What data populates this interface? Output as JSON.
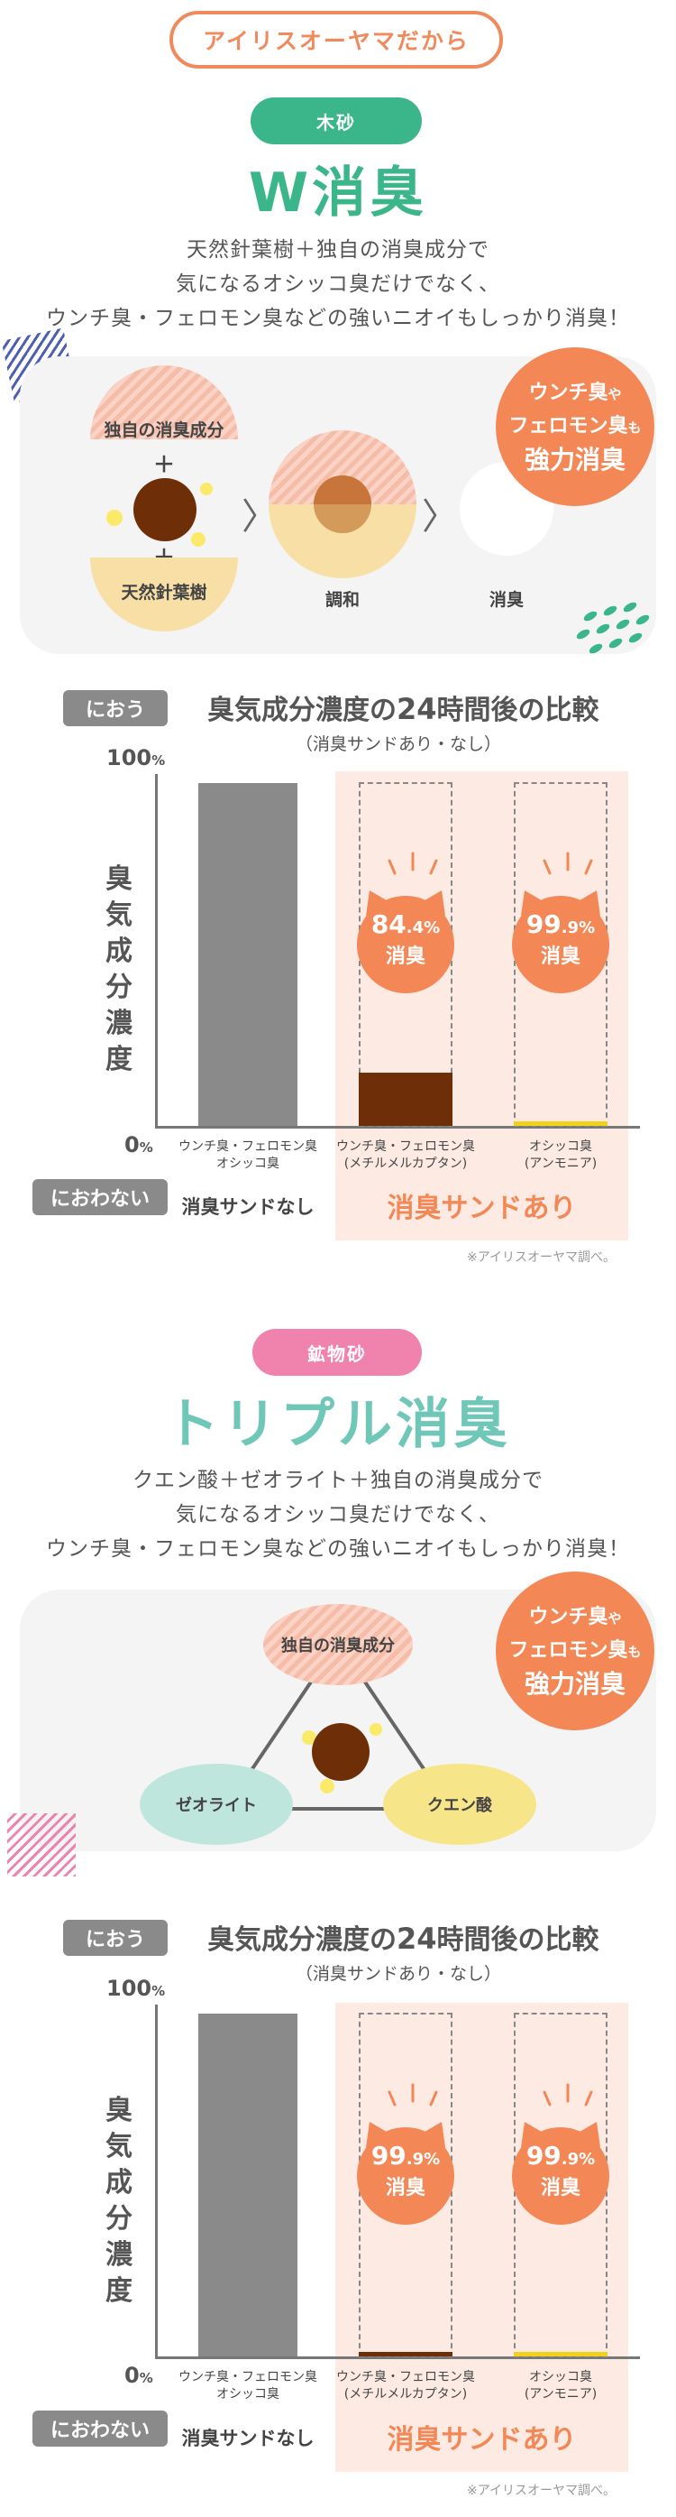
{
  "header_pill": "アイリスオーヤマだから",
  "section1": {
    "tag": "木砂",
    "title": "W消臭",
    "desc": [
      "天然針葉樹＋独自の消臭成分で",
      "気になるオシッコ臭だけでなく、",
      "ウンチ臭・フェロモン臭などの強いニオイもしっかり消臭！"
    ],
    "badge": {
      "line1": "ウンチ臭",
      "line1_small": "や",
      "line2": "フェロモン臭",
      "line2_small": "も",
      "line3": "強力消臭"
    },
    "diagram": {
      "top_label": "独自の消臭成分",
      "plus": "＋",
      "bottom_label": "天然針葉樹",
      "mix_label": "調和",
      "result_label": "消臭",
      "chevron": "〉"
    },
    "chart": {
      "title_prefix": "臭気成分濃度の",
      "title_num": "24",
      "title_suffix": "時間後の比較",
      "subtitle": "（消臭サンドあり・なし）",
      "top_tag": "におう",
      "bottom_tag": "におわない",
      "top_pct": "100",
      "bottom_pct": "0",
      "pct_sign": "%",
      "ylabel": [
        "臭",
        "気",
        "成",
        "分",
        "濃",
        "度"
      ],
      "cats": [
        {
          "l1": "ウンチ臭・フェロモン臭",
          "l2": "オシッコ臭"
        },
        {
          "l1": "ウンチ臭・フェロモン臭",
          "l2": "(メチルメルカプタン)"
        },
        {
          "l1": "オシッコ臭",
          "l2": "(アンモニア)"
        }
      ],
      "group_none": "消臭サンドなし",
      "group_yes": "消臭サンドあり",
      "note": "※アイリスオーヤマ調べ。",
      "badges": [
        {
          "int": "84",
          "dec": ".4%",
          "label": "消臭"
        },
        {
          "int": "99",
          "dec": ".9%",
          "label": "消臭"
        }
      ]
    }
  },
  "section2": {
    "tag": "鉱物砂",
    "title": "トリプル消臭",
    "desc": [
      "クエン酸＋ゼオライト＋独自の消臭成分で",
      "気になるオシッコ臭だけでなく、",
      "ウンチ臭・フェロモン臭などの強いニオイもしっかり消臭！"
    ],
    "badge": {
      "line1": "ウンチ臭",
      "line1_small": "や",
      "line2": "フェロモン臭",
      "line2_small": "も",
      "line3": "強力消臭"
    },
    "diagram": {
      "top_label": "独自の消臭成分",
      "left_label": "ゼオライト",
      "right_label": "クエン酸"
    },
    "chart": {
      "title_prefix": "臭気成分濃度の",
      "title_num": "24",
      "title_suffix": "時間後の比較",
      "subtitle": "（消臭サンドあり・なし）",
      "top_tag": "におう",
      "bottom_tag": "におわない",
      "top_pct": "100",
      "bottom_pct": "0",
      "pct_sign": "%",
      "ylabel": [
        "臭",
        "気",
        "成",
        "分",
        "濃",
        "度"
      ],
      "cats": [
        {
          "l1": "ウンチ臭・フェロモン臭",
          "l2": "オシッコ臭"
        },
        {
          "l1": "ウンチ臭・フェロモン臭",
          "l2": "(メチルメルカプタン)"
        },
        {
          "l1": "オシッコ臭",
          "l2": "(アンモニア)"
        }
      ],
      "group_none": "消臭サンドなし",
      "group_yes": "消臭サンドあり",
      "note": "※アイリスオーヤマ調べ。",
      "badges": [
        {
          "int": "99",
          "dec": ".9%",
          "label": "消臭"
        },
        {
          "int": "99",
          "dec": ".9%",
          "label": "消臭"
        }
      ]
    }
  },
  "chart_data": [
    {
      "type": "bar",
      "title": "臭気成分濃度の24時間後の比較",
      "subtitle": "（消臭サンドあり・なし）",
      "ylabel": "臭気成分濃度",
      "categories": [
        "ウンチ臭・フェロモン臭 オシッコ臭",
        "ウンチ臭・フェロモン臭 (メチルメルカプタン)",
        "オシッコ臭 (アンモニア)"
      ],
      "values": [
        100,
        15.6,
        0.1
      ],
      "ylim": [
        0,
        100
      ],
      "groups": [
        "消臭サンドなし",
        "消臭サンドあり",
        "消臭サンドあり"
      ],
      "colors": [
        "#8a8a8a",
        "#6d2e08",
        "#f2d11c"
      ]
    },
    {
      "type": "bar",
      "title": "臭気成分濃度の24時間後の比較",
      "subtitle": "（消臭サンドあり・なし）",
      "ylabel": "臭気成分濃度",
      "categories": [
        "ウンチ臭・フェロモン臭 オシッコ臭",
        "ウンチ臭・フェロモン臭 (メチルメルカプタン)",
        "オシッコ臭 (アンモニア)"
      ],
      "values": [
        100,
        0.1,
        0.1
      ],
      "ylim": [
        0,
        100
      ],
      "groups": [
        "消臭サンドなし",
        "消臭サンドあり",
        "消臭サンドあり"
      ],
      "colors": [
        "#8a8a8a",
        "#6d2e08",
        "#f2d11c"
      ]
    }
  ],
  "colors": {
    "accent": "#f38756",
    "green": "#3bb58a",
    "pink": "#ef83ad",
    "bar_none": "#8a8a8a",
    "bar_brown": "#6d2e08",
    "bar_yellow": "#f2d11c"
  }
}
